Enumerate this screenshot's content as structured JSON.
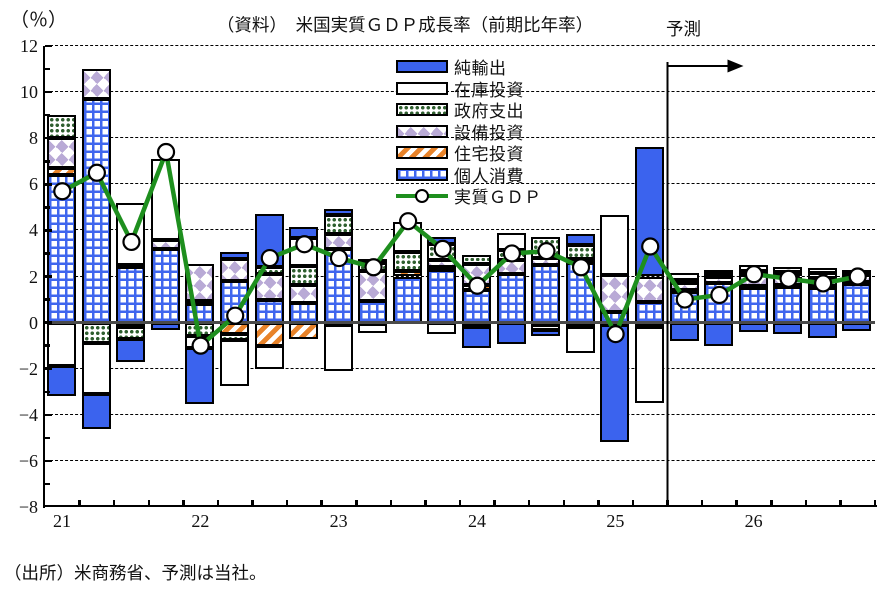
{
  "page": {
    "source": "（出所）米商務省、予測は当社。"
  },
  "legend": {
    "items": [
      {
        "id": "netexp",
        "label": "純輸出",
        "pattern": "solid-blue"
      },
      {
        "id": "inventory",
        "label": "在庫投資",
        "pattern": "white"
      },
      {
        "id": "gov",
        "label": "政府支出",
        "pattern": "green-dots"
      },
      {
        "id": "equip",
        "label": "設備投資",
        "pattern": "purple-diamonds"
      },
      {
        "id": "housing",
        "label": "住宅投資",
        "pattern": "orange-diagonal-stripes"
      },
      {
        "id": "pce",
        "label": "個人消費",
        "pattern": "blue-grid"
      },
      {
        "id": "gdp",
        "label": "実質ＧＤＰ",
        "pattern": "green-line-circle-marker"
      }
    ]
  },
  "chart_data": {
    "type": "bar",
    "subtype": "stacked-contribution-bars-with-line",
    "title": "（資料）　米国実質ＧＤＰ成長率（前期比年率）",
    "ylabel": "（％）",
    "forecast_label": "予測",
    "forecast_start": "2025Q3",
    "ylim": [
      -8,
      12
    ],
    "grid": "dashed-horizontal",
    "legend_position": "upper-center",
    "yticks": [
      12,
      10,
      8,
      6,
      4,
      2,
      0,
      -2,
      -4,
      -6,
      -8
    ],
    "ytick_labels": [
      "12",
      "10",
      "8",
      "6",
      "4",
      "2",
      "0",
      "−2",
      "−4",
      "−6",
      "−8"
    ],
    "gridline_values": [
      12,
      10,
      8,
      6,
      4,
      2,
      -2,
      -4,
      -6
    ],
    "categories": [
      "2021Q1",
      "2021Q2",
      "2021Q3",
      "2021Q4",
      "2022Q1",
      "2022Q2",
      "2022Q3",
      "2022Q4",
      "2023Q1",
      "2023Q2",
      "2023Q3",
      "2023Q4",
      "2024Q1",
      "2024Q2",
      "2024Q3",
      "2024Q4",
      "2025Q1",
      "2025Q2",
      "2025Q3",
      "2025Q4",
      "2026Q1",
      "2026Q2",
      "2026Q3",
      "2026Q4"
    ],
    "year_labels": [
      "21",
      "22",
      "23",
      "24",
      "25",
      "26"
    ],
    "stack_order": [
      "pce",
      "housing",
      "equip",
      "gov",
      "inventory",
      "netexp"
    ],
    "series": [
      {
        "id": "pce",
        "name": "個人消費",
        "color": "#3f66ee",
        "pattern": "blue-grid",
        "values": [
          6.4,
          9.7,
          2.4,
          3.2,
          0.8,
          1.8,
          1.0,
          0.85,
          3.2,
          0.95,
          2.0,
          2.3,
          1.4,
          2.1,
          2.5,
          2.6,
          0.45,
          0.9,
          1.35,
          1.7,
          1.55,
          1.6,
          1.55,
          1.7
        ]
      },
      {
        "id": "housing",
        "name": "住宅投資",
        "color": "#e8832a",
        "pattern": "orange-diagonal-stripes",
        "values": [
          0.3,
          0.0,
          -0.2,
          0.0,
          0.15,
          -0.5,
          -1.0,
          -0.7,
          -0.1,
          -0.05,
          0.25,
          0.1,
          0.25,
          0.0,
          -0.1,
          0.15,
          0.0,
          0.0,
          0.05,
          0.0,
          0.05,
          0.05,
          0.05,
          0.05
        ]
      },
      {
        "id": "equip",
        "name": "設備投資",
        "color": "#b9aad6",
        "pattern": "purple-diamonds",
        "values": [
          1.3,
          1.3,
          0.1,
          0.4,
          1.6,
          0.95,
          1.1,
          0.8,
          0.65,
          1.3,
          0.0,
          0.3,
          0.9,
          0.6,
          0.3,
          -0.2,
          1.6,
          1.1,
          0.3,
          0.3,
          0.45,
          0.35,
          0.35,
          0.3
        ]
      },
      {
        "id": "gov",
        "name": "政府支出",
        "color": "#2f5f2f",
        "pattern": "green-dots",
        "values": [
          1.0,
          -0.9,
          -0.5,
          0.0,
          -0.6,
          -0.25,
          0.3,
          0.8,
          0.8,
          0.35,
          0.8,
          0.7,
          0.4,
          0.45,
          0.9,
          0.6,
          -0.1,
          -0.2,
          0.15,
          0.1,
          0.2,
          0.2,
          0.2,
          0.15
        ]
      },
      {
        "id": "inventory",
        "name": "在庫投資",
        "color": "#ffffff",
        "pattern": "white",
        "values": [
          -1.9,
          -2.2,
          2.7,
          3.5,
          -0.5,
          -2.0,
          -1.0,
          1.2,
          -2.0,
          -0.4,
          1.3,
          -0.5,
          -0.2,
          0.75,
          -0.2,
          -1.1,
          2.6,
          -3.3,
          0.3,
          0.2,
          0.25,
          0.2,
          0.2,
          0.1
        ]
      },
      {
        "id": "netexp",
        "name": "純輸出",
        "color": "#3b63ee",
        "pattern": "solid-blue",
        "values": [
          -1.3,
          -1.5,
          -1.0,
          -0.3,
          -2.45,
          0.3,
          2.3,
          0.5,
          0.3,
          0.15,
          0.0,
          0.3,
          -0.9,
          -0.95,
          -0.3,
          0.5,
          -5.1,
          5.6,
          -0.8,
          -1.0,
          -0.4,
          -0.5,
          -0.65,
          -0.35
        ]
      }
    ],
    "gdp_line": {
      "id": "gdp",
      "name": "実質ＧＤＰ",
      "color": "#1e8f1e",
      "marker": "white-circle",
      "values": [
        5.7,
        6.5,
        3.5,
        7.4,
        -1.0,
        0.3,
        2.8,
        3.4,
        2.8,
        2.4,
        4.4,
        3.2,
        1.6,
        3.0,
        3.1,
        2.4,
        -0.5,
        3.3,
        1.0,
        1.2,
        2.1,
        1.9,
        1.7,
        2.0
      ]
    }
  }
}
